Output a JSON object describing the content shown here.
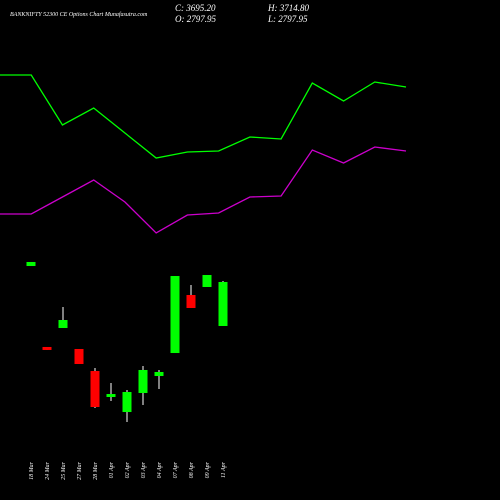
{
  "chart_data": [
    {
      "type": "candlestick",
      "title": "BANKNIFTY 52300 CE Options Chart Munafasutra.com",
      "ohlc_labels": [
        "C: 3695.20",
        "H: 3714.80",
        "O: 2797.95",
        "L: 2797.95"
      ],
      "categories": [
        "18 Mar",
        "24 Mar",
        "25 Mar",
        "27 Mar",
        "28 Mar",
        "01 Apr",
        "02 Apr",
        "03 Apr",
        "04 Apr",
        "07 Apr",
        "08 Apr",
        "09 Apr",
        "11 Apr"
      ],
      "open": [
        4021,
        2370,
        2757,
        2329,
        1880,
        1350,
        1044,
        1432,
        1778,
        2247,
        3430,
        3593,
        2797.95
      ],
      "high": [
        4103,
        2370,
        3185,
        2329,
        1941,
        1636,
        1493,
        1982,
        1901,
        3817,
        3634,
        3838,
        3714.8
      ],
      "low": [
        4021,
        2309,
        2757,
        2023,
        1126,
        1269,
        840,
        1187,
        1513,
        2247,
        3165,
        3593,
        2797.95
      ],
      "close": [
        4103,
        2309,
        2920,
        2023,
        1146,
        1411,
        1452,
        1901,
        1860,
        3817,
        3165,
        3838,
        3695.2
      ],
      "up_color": "#00ff00",
      "down_color": "#ff0000",
      "ylim": [
        -750,
        9445
      ]
    },
    {
      "type": "line",
      "categories": [
        null,
        null,
        null,
        null,
        null,
        null,
        null,
        null,
        null,
        null,
        null,
        null,
        null,
        null
      ],
      "series": [
        {
          "color": "#00ff00",
          "values": [
            425,
            425,
            375,
            392,
            367,
            342,
            348,
            349,
            363,
            361,
            417,
            399,
            418,
            413
          ]
        },
        {
          "color": "#cc00cc",
          "values": [
            286,
            286,
            303,
            320,
            298,
            267,
            285,
            287,
            303,
            304,
            350,
            337,
            353,
            349
          ]
        }
      ],
      "ylim": [
        0,
        500
      ]
    }
  ]
}
